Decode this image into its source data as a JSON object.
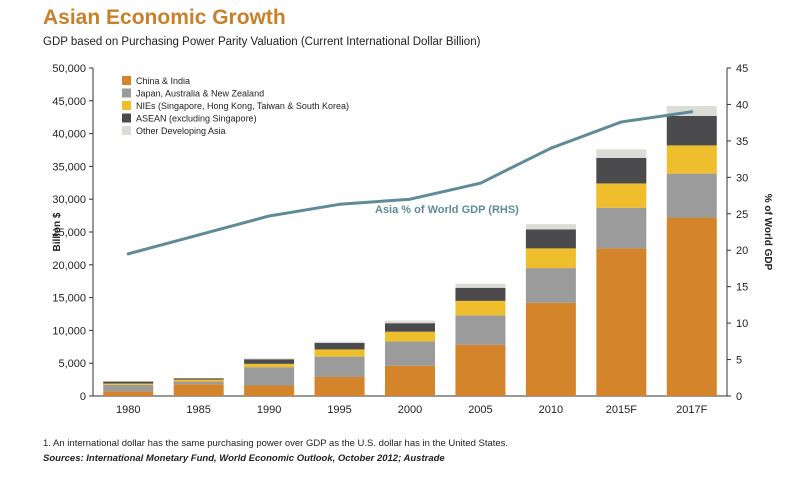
{
  "header": {
    "title": "Asian Economic Growth",
    "subtitle": "GDP based on Purchasing Power Parity Valuation (Current International Dollar Billion)"
  },
  "footer": {
    "footnote": "1. An international dollar has the same purchasing power over GDP as the U.S. dollar has in the United States.",
    "sources": "Sources: International Monetary Fund, World Economic Outlook, October 2012; Austrade"
  },
  "colors": {
    "china_india": "#d4842a",
    "japan_aus_nz": "#9b9b9b",
    "nies": "#efbe2c",
    "asean": "#4b4b4e",
    "other": "#dcdcd6",
    "line": "#5f8b99"
  },
  "chart_data": {
    "type": "bar",
    "stacked": true,
    "categories": [
      "1980",
      "1985",
      "1990",
      "1995",
      "2000",
      "2005",
      "2010",
      "2015F",
      "2017F"
    ],
    "series": [
      {
        "name": "China & India",
        "values": [
          700,
          1800,
          1600,
          2900,
          4600,
          7800,
          14200,
          22500,
          27200
        ]
      },
      {
        "name": "Japan, Australia & New Zealand",
        "values": [
          1000,
          400,
          2800,
          3100,
          3700,
          4500,
          5300,
          6200,
          6700
        ]
      },
      {
        "name": "NIEs (Singapore, Hong Kong, Taiwan & South Korea)",
        "values": [
          200,
          300,
          500,
          1100,
          1500,
          2200,
          3000,
          3700,
          4300
        ]
      },
      {
        "name": "ASEAN (excluding Singapore)",
        "values": [
          300,
          200,
          700,
          1000,
          1300,
          2000,
          2900,
          3900,
          4500
        ]
      },
      {
        "name": "Other Developing Asia",
        "values": [
          50,
          50,
          150,
          200,
          400,
          600,
          800,
          1300,
          1500
        ]
      }
    ],
    "line": {
      "name": "Asia % of World GDP (RHS)",
      "values": [
        19.5,
        22.1,
        24.7,
        26.3,
        27.0,
        29.2,
        34.0,
        37.6,
        39.0
      ]
    },
    "ylabel": "Billion $",
    "y2label": "% of World GDP",
    "ylim": [
      0,
      50000
    ],
    "y2lim": [
      0,
      45
    ],
    "yticks": [
      "0",
      "5,000",
      "10,000",
      "15,000",
      "20,000",
      "25,000",
      "30,000",
      "35,000",
      "40,000",
      "45,000",
      "50,000"
    ],
    "y2ticks": [
      "0",
      "5",
      "10",
      "15",
      "20",
      "25",
      "30",
      "35",
      "40",
      "45"
    ],
    "legend_position": "top-left",
    "grid": false
  }
}
